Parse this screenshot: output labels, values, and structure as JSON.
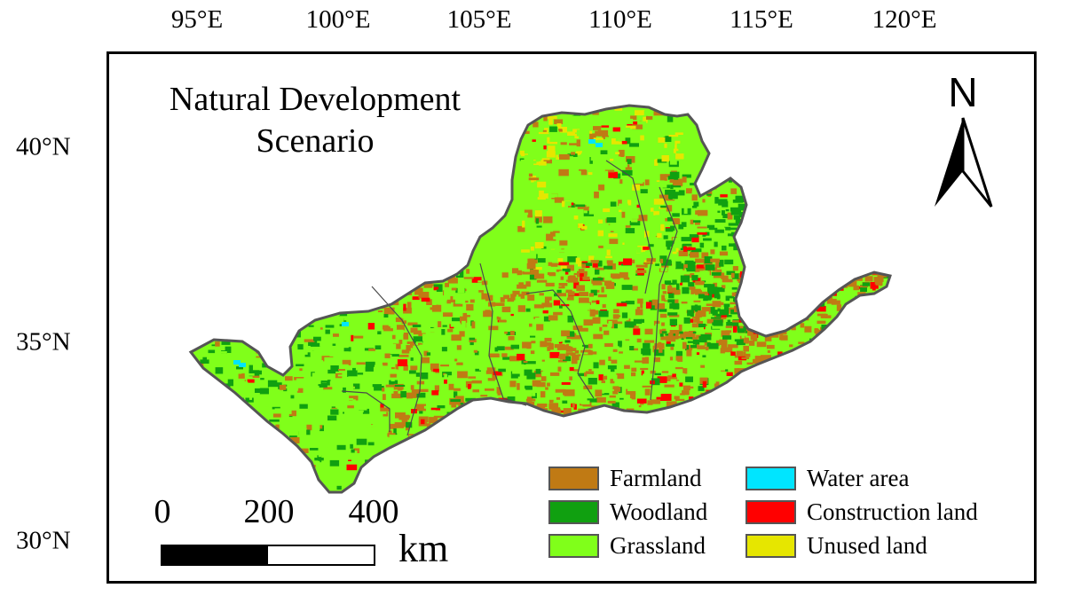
{
  "title_line1": "Natural Development",
  "title_line2": "Scenario",
  "longitude_labels": [
    "95°E",
    "100°E",
    "105°E",
    "110°E",
    "115°E",
    "120°E"
  ],
  "latitude_labels": [
    "40°N",
    "35°N",
    "30°N"
  ],
  "north_arrow": {
    "letter": "N",
    "icon": "north-arrow-icon"
  },
  "scale_bar": {
    "ticks": [
      "0",
      "200",
      "400"
    ],
    "unit": "km"
  },
  "legend": [
    {
      "label": "Farmland",
      "color": "#c07a14"
    },
    {
      "label": "Water area",
      "color": "#00e5ff"
    },
    {
      "label": "Woodland",
      "color": "#10a010"
    },
    {
      "label": "Construction land",
      "color": "#ff0000"
    },
    {
      "label": "Grassland",
      "color": "#80ff1a"
    },
    {
      "label": "Unused land",
      "color": "#e6e600"
    }
  ],
  "colors": {
    "basin_outline": "#555555",
    "subregion_outline": "#4a4a4a"
  }
}
